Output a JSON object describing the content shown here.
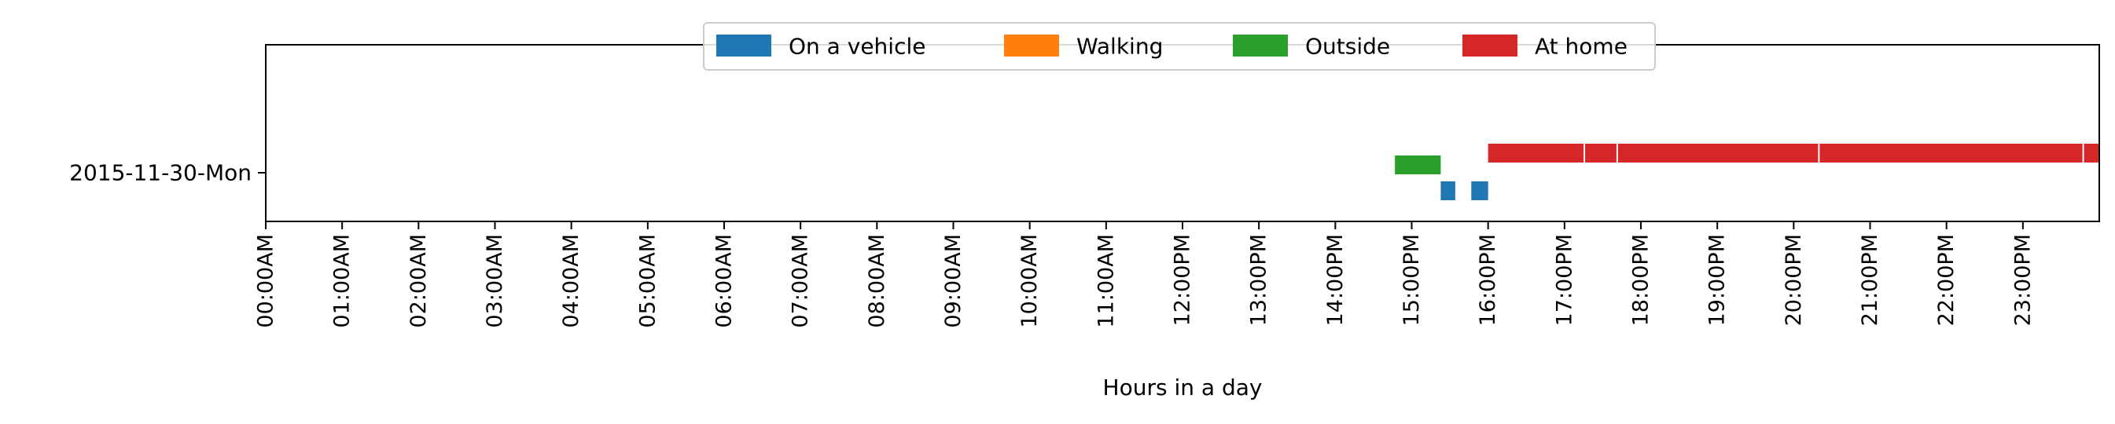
{
  "chart_data": {
    "type": "timeline",
    "title": "",
    "xlabel": "Hours in a day",
    "ylabel": "",
    "xlim": [
      0,
      24
    ],
    "categories": [
      "2015-11-30-Mon"
    ],
    "x_tick_labels": [
      "00:00AM",
      "01:00AM",
      "02:00AM",
      "03:00AM",
      "04:00AM",
      "05:00AM",
      "06:00AM",
      "07:00AM",
      "08:00AM",
      "09:00AM",
      "10:00AM",
      "11:00AM",
      "12:00PM",
      "13:00PM",
      "14:00PM",
      "15:00PM",
      "16:00PM",
      "17:00PM",
      "18:00PM",
      "19:00PM",
      "20:00PM",
      "21:00PM",
      "22:00PM",
      "23:00PM"
    ],
    "legend_placement": "top-center",
    "grid": false,
    "series": [
      {
        "name": "On a vehicle",
        "color": "#1f77b4",
        "intervals": [
          [
            15.38,
            15.57
          ],
          [
            15.78,
            16.0
          ]
        ]
      },
      {
        "name": "Walking",
        "color": "#ff7f0e",
        "intervals": []
      },
      {
        "name": "Outside",
        "color": "#2ca02c",
        "intervals": [
          [
            14.78,
            15.38
          ]
        ]
      },
      {
        "name": "At home",
        "color": "#d62728",
        "intervals": [
          [
            16.0,
            17.25
          ],
          [
            17.27,
            17.68
          ],
          [
            17.7,
            20.32
          ],
          [
            20.34,
            23.78
          ],
          [
            23.8,
            24.0
          ]
        ]
      }
    ]
  }
}
